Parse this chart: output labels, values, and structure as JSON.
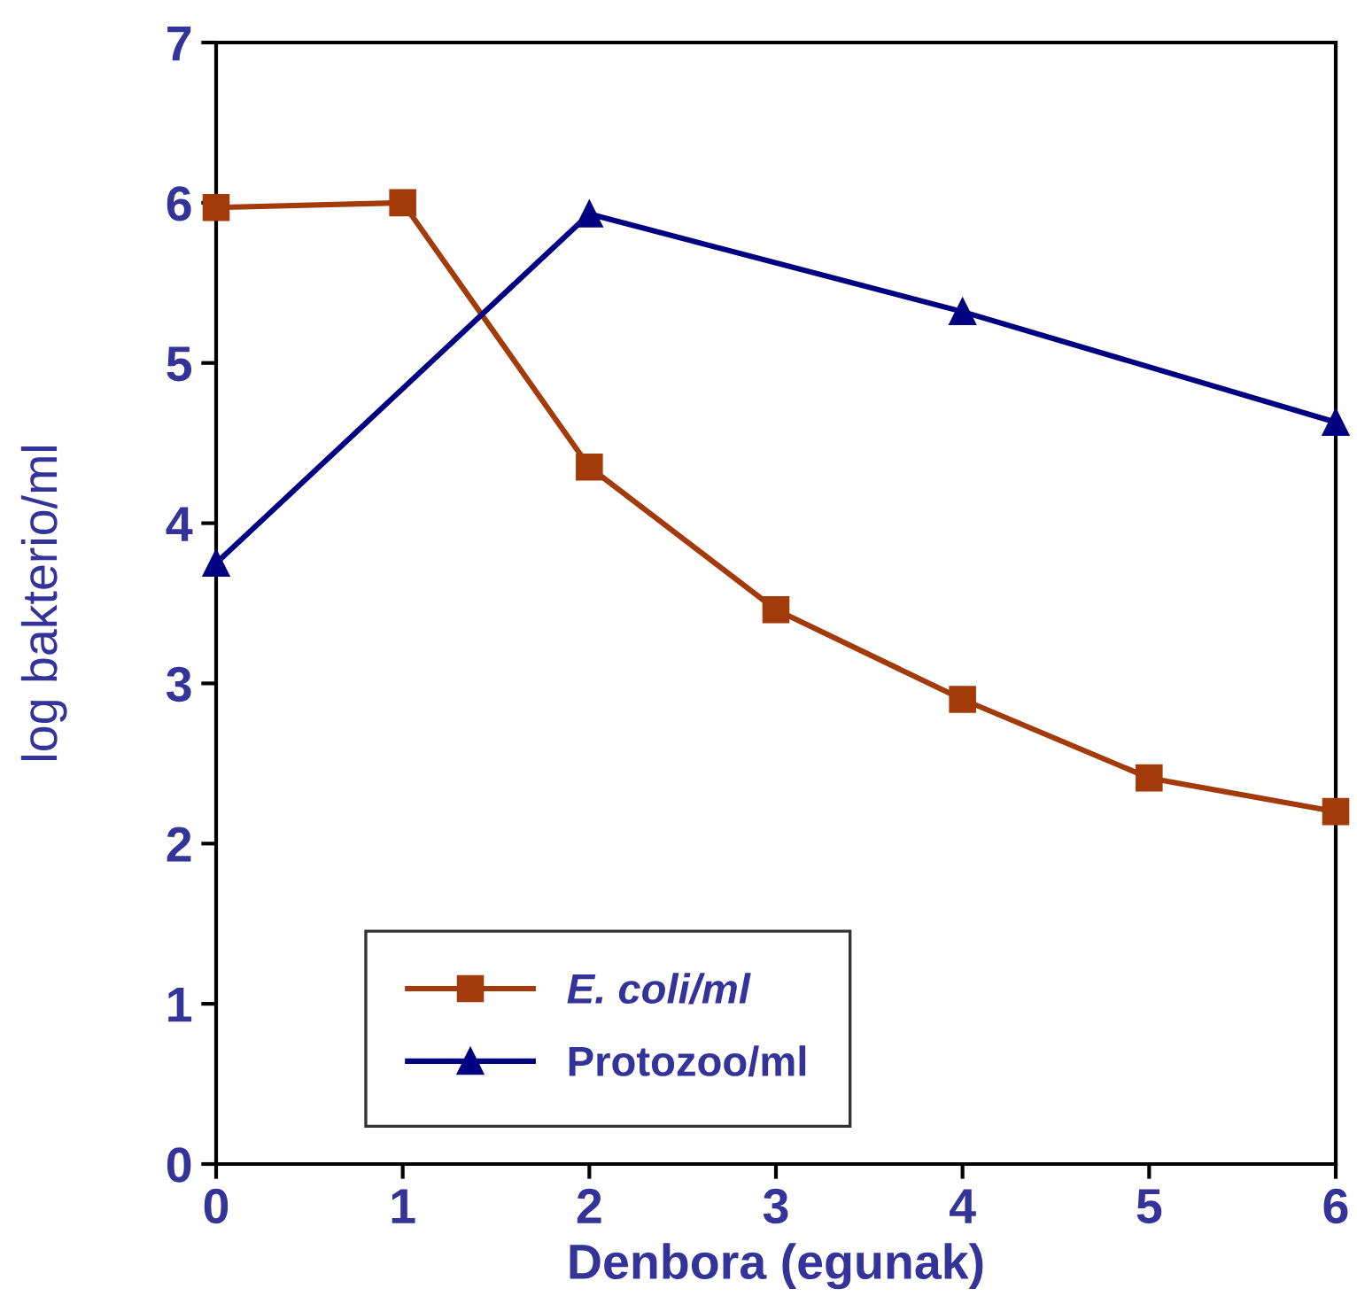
{
  "chart_data": {
    "type": "line",
    "xlabel": "Denbora (egunak)",
    "ylabel": "log bakterio/ml",
    "xlim": [
      0,
      6
    ],
    "ylim": [
      0,
      7
    ],
    "xticks": [
      0,
      1,
      2,
      3,
      4,
      5,
      6
    ],
    "yticks": [
      0,
      1,
      2,
      3,
      4,
      5,
      6,
      7
    ],
    "grid": false,
    "legend": "bottom left",
    "series": [
      {
        "name": "E. coli/ml",
        "color": "#a33a0a",
        "marker": "square",
        "x": [
          0,
          1,
          2,
          3,
          4,
          5,
          6
        ],
        "values": [
          5.97,
          6.0,
          4.35,
          3.46,
          2.9,
          2.41,
          2.2
        ]
      },
      {
        "name": "Protozoo/ml",
        "color": "#000080",
        "marker": "triangle",
        "x": [
          0,
          2,
          4,
          6
        ],
        "values": [
          3.75,
          5.93,
          5.32,
          4.63
        ]
      }
    ]
  }
}
